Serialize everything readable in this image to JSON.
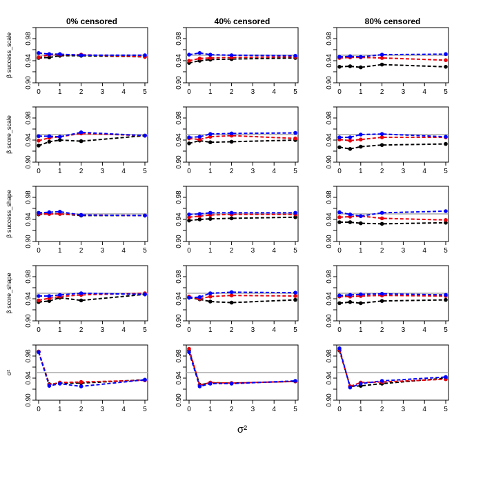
{
  "chart_data": {
    "type": "line",
    "title": "",
    "column_titles": [
      "0% censored",
      "40% censored",
      "80% censored"
    ],
    "row_labels": [
      "β success_scale",
      "β score_scale",
      "β success_shape",
      "β score_shape",
      "σ²"
    ],
    "xlabel": "σ²",
    "x": [
      0,
      0.5,
      1,
      2,
      5
    ],
    "xticks": [
      "0",
      "1",
      "2",
      "3",
      "4",
      "5"
    ],
    "xlim": [
      0,
      5
    ],
    "yticks": [
      "0.90",
      "0.94",
      "0.98"
    ],
    "ylim": [
      0.9,
      1.0
    ],
    "reference_line": {
      "y": 0.95,
      "color": "#aaaaaa"
    },
    "series_colors": {
      "black": "#000000",
      "red": "#e8000b",
      "blue": "#0000ff"
    },
    "panels": [
      [
        {
          "series": [
            {
              "name": "black",
              "values": [
                0.945,
                0.946,
                0.949,
                0.949,
                0.947
              ]
            },
            {
              "name": "red",
              "values": [
                0.946,
                0.951,
                0.951,
                0.951,
                0.947
              ]
            },
            {
              "name": "blue",
              "values": [
                0.954,
                0.952,
                0.952,
                0.95,
                0.95
              ]
            }
          ]
        },
        {
          "series": [
            {
              "name": "black",
              "values": [
                0.936,
                0.94,
                0.942,
                0.943,
                0.945
              ]
            },
            {
              "name": "red",
              "values": [
                0.94,
                0.944,
                0.945,
                0.946,
                0.947
              ]
            },
            {
              "name": "blue",
              "values": [
                0.951,
                0.954,
                0.951,
                0.95,
                0.949
              ]
            }
          ]
        },
        {
          "series": [
            {
              "name": "black",
              "values": [
                0.929,
                0.93,
                0.928,
                0.933,
                0.929
              ]
            },
            {
              "name": "red",
              "values": [
                0.945,
                0.946,
                0.946,
                0.945,
                0.941
              ]
            },
            {
              "name": "blue",
              "values": [
                0.947,
                0.948,
                0.947,
                0.951,
                0.952
              ]
            }
          ]
        }
      ],
      [
        {
          "series": [
            {
              "name": "black",
              "values": [
                0.93,
                0.937,
                0.94,
                0.938,
                0.948
              ]
            },
            {
              "name": "red",
              "values": [
                0.939,
                0.944,
                0.946,
                0.952,
                0.948
              ]
            },
            {
              "name": "blue",
              "values": [
                0.947,
                0.947,
                0.946,
                0.954,
                0.948
              ]
            }
          ]
        },
        {
          "series": [
            {
              "name": "black",
              "values": [
                0.934,
                0.939,
                0.936,
                0.937,
                0.94
              ]
            },
            {
              "name": "red",
              "values": [
                0.943,
                0.941,
                0.946,
                0.948,
                0.943
              ]
            },
            {
              "name": "blue",
              "values": [
                0.945,
                0.946,
                0.951,
                0.952,
                0.953
              ]
            }
          ]
        },
        {
          "series": [
            {
              "name": "black",
              "values": [
                0.927,
                0.924,
                0.928,
                0.931,
                0.933
              ]
            },
            {
              "name": "red",
              "values": [
                0.941,
                0.939,
                0.941,
                0.945,
                0.945
              ]
            },
            {
              "name": "blue",
              "values": [
                0.945,
                0.945,
                0.95,
                0.951,
                0.946
              ]
            }
          ]
        }
      ],
      [
        {
          "series": [
            {
              "name": "black",
              "values": [
                0.949,
                0.95,
                0.95,
                0.947,
                0.947
              ]
            },
            {
              "name": "red",
              "values": [
                0.95,
                0.95,
                0.95,
                0.948,
                0.947
              ]
            },
            {
              "name": "blue",
              "values": [
                0.952,
                0.953,
                0.954,
                0.948,
                0.947
              ]
            }
          ]
        },
        {
          "series": [
            {
              "name": "black",
              "values": [
                0.938,
                0.94,
                0.941,
                0.942,
                0.944
              ]
            },
            {
              "name": "red",
              "values": [
                0.944,
                0.946,
                0.948,
                0.949,
                0.949
              ]
            },
            {
              "name": "blue",
              "values": [
                0.949,
                0.95,
                0.952,
                0.952,
                0.952
              ]
            }
          ]
        },
        {
          "series": [
            {
              "name": "black",
              "values": [
                0.935,
                0.935,
                0.933,
                0.932,
                0.934
              ]
            },
            {
              "name": "red",
              "values": [
                0.944,
                0.945,
                0.946,
                0.942,
                0.939
              ]
            },
            {
              "name": "blue",
              "values": [
                0.953,
                0.949,
                0.946,
                0.952,
                0.955
              ]
            }
          ]
        }
      ],
      [
        {
          "series": [
            {
              "name": "black",
              "values": [
                0.934,
                0.936,
                0.942,
                0.937,
                0.948
              ]
            },
            {
              "name": "red",
              "values": [
                0.937,
                0.941,
                0.944,
                0.947,
                0.95
              ]
            },
            {
              "name": "blue",
              "values": [
                0.945,
                0.945,
                0.947,
                0.95,
                0.948
              ]
            }
          ]
        },
        {
          "series": [
            {
              "name": "black",
              "values": [
                0.942,
                0.939,
                0.935,
                0.933,
                0.938
              ]
            },
            {
              "name": "red",
              "values": [
                0.944,
                0.94,
                0.944,
                0.946,
                0.945
              ]
            },
            {
              "name": "blue",
              "values": [
                0.942,
                0.943,
                0.95,
                0.952,
                0.951
              ]
            }
          ]
        },
        {
          "series": [
            {
              "name": "black",
              "values": [
                0.932,
                0.934,
                0.932,
                0.936,
                0.938
              ]
            },
            {
              "name": "red",
              "values": [
                0.944,
                0.944,
                0.945,
                0.946,
                0.945
              ]
            },
            {
              "name": "blue",
              "values": [
                0.946,
                0.947,
                0.948,
                0.949,
                0.947
              ]
            }
          ]
        }
      ],
      [
        {
          "series": [
            {
              "name": "black",
              "values": [
                0.988,
                0.929,
                0.931,
                0.931,
                0.937
              ]
            },
            {
              "name": "red",
              "values": [
                0.988,
                0.928,
                0.932,
                0.933,
                0.936
              ]
            },
            {
              "name": "blue",
              "values": [
                0.987,
                0.926,
                0.93,
                0.925,
                0.937
              ]
            }
          ]
        },
        {
          "series": [
            {
              "name": "black",
              "values": [
                0.99,
                0.928,
                0.931,
                0.931,
                0.934
              ]
            },
            {
              "name": "red",
              "values": [
                0.993,
                0.927,
                0.932,
                0.931,
                0.934
              ]
            },
            {
              "name": "blue",
              "values": [
                0.987,
                0.925,
                0.93,
                0.93,
                0.935
              ]
            }
          ]
        },
        {
          "series": [
            {
              "name": "black",
              "values": [
                0.99,
                0.925,
                0.926,
                0.93,
                0.94
              ]
            },
            {
              "name": "red",
              "values": [
                0.991,
                0.925,
                0.932,
                0.933,
                0.938
              ]
            },
            {
              "name": "blue",
              "values": [
                0.994,
                0.923,
                0.93,
                0.935,
                0.942
              ]
            }
          ]
        }
      ]
    ]
  }
}
